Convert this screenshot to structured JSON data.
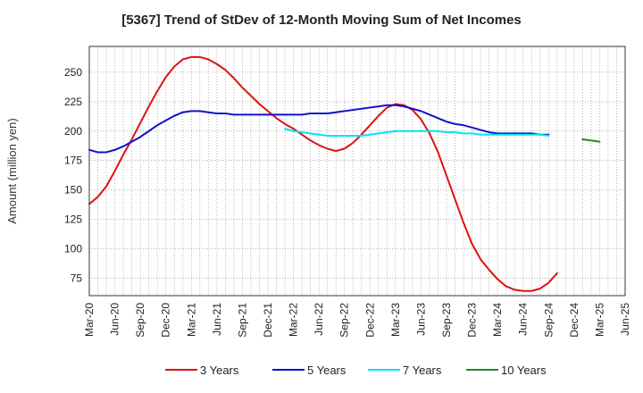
{
  "chart_data": {
    "type": "line",
    "title": "[5367]  Trend of StDev of 12-Month Moving Sum of Net Incomes",
    "xlabel": "",
    "ylabel": "Amount (million yen)",
    "ylim": [
      60,
      272
    ],
    "yticks": [
      75,
      100,
      125,
      150,
      175,
      200,
      225,
      250
    ],
    "xticks": [
      "Mar-20",
      "Jun-20",
      "Sep-20",
      "Dec-20",
      "Mar-21",
      "Jun-21",
      "Sep-21",
      "Dec-21",
      "Mar-22",
      "Jun-22",
      "Sep-22",
      "Dec-22",
      "Mar-23",
      "Jun-23",
      "Sep-23",
      "Dec-23",
      "Mar-24",
      "Jun-24",
      "Sep-24",
      "Dec-24",
      "Mar-25",
      "Jun-25"
    ],
    "grid": true,
    "legend_position": "bottom",
    "series": [
      {
        "name": "3 Years",
        "color": "#dd1111",
        "start": "Mar-20",
        "values": [
          138,
          144,
          153,
          166,
          180,
          193,
          207,
          221,
          234,
          246,
          255,
          261,
          263,
          263,
          261,
          257,
          252,
          245,
          237,
          230,
          223,
          217,
          211,
          206,
          202,
          197,
          192,
          188,
          185,
          183,
          185,
          190,
          197,
          205,
          213,
          220,
          223,
          222,
          218,
          210,
          198,
          182,
          162,
          142,
          122,
          104,
          91,
          82,
          74,
          68,
          65,
          64,
          64,
          66,
          71,
          79
        ]
      },
      {
        "name": "5 Years",
        "color": "#1111cc",
        "start": "Mar-20",
        "values": [
          184,
          182,
          182,
          184,
          187,
          191,
          195,
          200,
          205,
          209,
          213,
          216,
          217,
          217,
          216,
          215,
          215,
          214,
          214,
          214,
          214,
          214,
          214,
          214,
          214,
          214,
          215,
          215,
          215,
          216,
          217,
          218,
          219,
          220,
          221,
          222,
          222,
          221,
          219,
          217,
          214,
          211,
          208,
          206,
          205,
          203,
          201,
          199,
          198,
          198,
          198,
          198,
          198,
          197,
          197
        ]
      },
      {
        "name": "7 Years",
        "color": "#00e5ee",
        "start": "Feb-22",
        "values": [
          202,
          200,
          199,
          198,
          197,
          196,
          196,
          196,
          196,
          196,
          197,
          198,
          199,
          200,
          200,
          200,
          200,
          200,
          200,
          199,
          199,
          198,
          198,
          197,
          197,
          197,
          197,
          197,
          197,
          197,
          197,
          196
        ]
      },
      {
        "name": "10 Years",
        "color": "#228822",
        "start": "Jan-25",
        "values": [
          193,
          192,
          191
        ]
      }
    ]
  }
}
